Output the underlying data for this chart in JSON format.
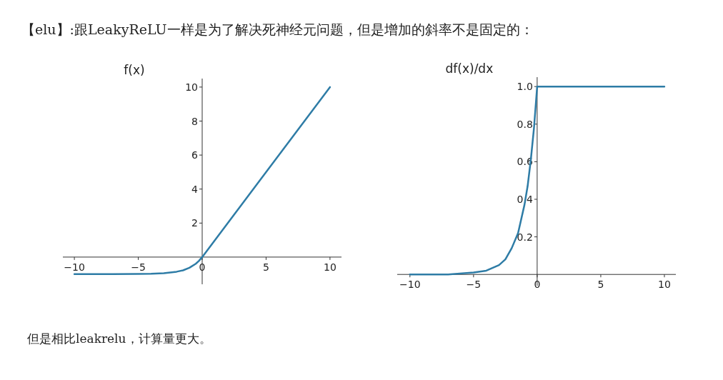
{
  "chart_data": [
    {
      "type": "line",
      "ylabel": "f(x)",
      "annotations": [
        "【elu】:跟LeakyReLU一样是为了解决死神经元问题，但是增加的斜率不是固定的："
      ],
      "x": [
        -10,
        -7,
        -5,
        -4,
        -3,
        -2,
        -1.5,
        -1,
        -0.5,
        -0.25,
        0,
        10
      ],
      "series": [
        {
          "color": "#2e7ca6",
          "values": [
            -1,
            -1,
            -0.99,
            -0.98,
            -0.95,
            -0.86,
            -0.78,
            -0.63,
            -0.39,
            -0.22,
            0,
            10
          ]
        }
      ],
      "xlim": [
        -10.9,
        10.9
      ],
      "ylim": [
        -1.6,
        10.5
      ],
      "xticks": [
        -10,
        -5,
        0,
        5,
        10
      ],
      "yticks": [
        2,
        4,
        6,
        8,
        10
      ],
      "grid": false
    },
    {
      "type": "line",
      "ylabel": "df(x)/dx",
      "annotations": [
        "但是相比leakrelu，计算量更大。"
      ],
      "x": [
        -10,
        -7,
        -5,
        -4,
        -3,
        -2.5,
        -2,
        -1.5,
        -1,
        -0.75,
        -0.5,
        -0.25,
        0,
        0,
        10
      ],
      "series": [
        {
          "color": "#2e7ca6",
          "values": [
            0,
            0,
            0.01,
            0.02,
            0.05,
            0.08,
            0.14,
            0.22,
            0.37,
            0.47,
            0.61,
            0.78,
            1,
            1,
            1
          ]
        }
      ],
      "xlim": [
        -11,
        10.9
      ],
      "ylim": [
        -0.06,
        1.05
      ],
      "xticks": [
        -10,
        -5,
        0,
        5,
        10
      ],
      "yticks": [
        {
          "value": 0.2,
          "label": "0.2"
        },
        {
          "value": 0.4,
          "label": "0.4"
        },
        {
          "value": 0.6,
          "label": "0.6"
        },
        {
          "value": 0.8,
          "label": "0.8"
        },
        {
          "value": 1,
          "label": "1.0"
        }
      ],
      "grid": false
    }
  ]
}
